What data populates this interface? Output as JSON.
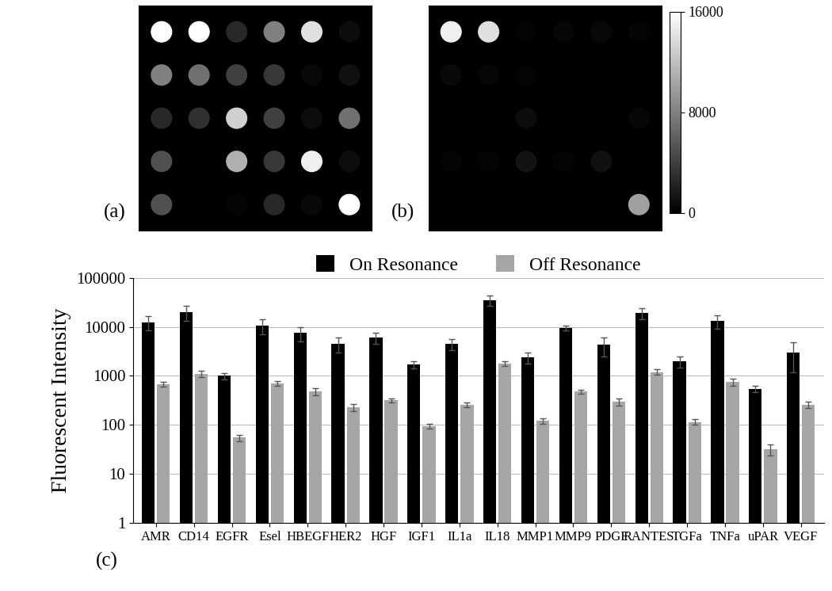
{
  "chart_data": [
    {
      "type": "heatmap",
      "label": "(a)",
      "cells": [
        [
          16000,
          16000,
          2500,
          8000,
          14000,
          800
        ],
        [
          8000,
          7000,
          4000,
          3500,
          500,
          1000
        ],
        [
          2500,
          3000,
          13000,
          4000,
          800,
          7000
        ],
        [
          5000,
          0,
          11000,
          3500,
          15000,
          800
        ],
        [
          5000,
          0,
          300,
          2500,
          500,
          16000
        ]
      ],
      "colorbar_range": [
        0,
        16000
      ]
    },
    {
      "type": "heatmap",
      "label": "(b)",
      "cells": [
        [
          15000,
          14000,
          300,
          400,
          500,
          300
        ],
        [
          600,
          400,
          300,
          0,
          0,
          0
        ],
        [
          0,
          0,
          800,
          0,
          0,
          400
        ],
        [
          300,
          300,
          1200,
          300,
          1000,
          0
        ],
        [
          0,
          0,
          0,
          0,
          0,
          10000
        ]
      ],
      "colorbar_range": [
        0,
        16000
      ],
      "colorbar_ticks": [
        0,
        8000,
        16000
      ]
    },
    {
      "type": "bar",
      "label": "(c)",
      "y_label": "Fluorescent Intensity",
      "categories": [
        "AMR",
        "CD14",
        "EGFR",
        "Esel",
        "HBEGF",
        "HER2",
        "HGF",
        "IGF1",
        "IL1a",
        "IL18",
        "MMP1",
        "MMP9",
        "PDGF",
        "RANTES",
        "TGFa",
        "TNFa",
        "uPAR",
        "VEGF"
      ],
      "series": [
        {
          "name": "On Resonance",
          "color": "#000000",
          "values": [
            12500,
            20000,
            1000,
            10500,
            7500,
            4500,
            6000,
            1700,
            4500,
            35000,
            2400,
            9500,
            4300,
            19000,
            2000,
            13000,
            550,
            3000
          ],
          "errors": [
            4000,
            7000,
            150,
            3500,
            2500,
            1500,
            1500,
            300,
            1200,
            8000,
            600,
            1000,
            1800,
            5000,
            500,
            4000,
            80,
            1800
          ]
        },
        {
          "name": "Off Resonance",
          "color": "#a6a6a6",
          "values": [
            680,
            1100,
            55,
            700,
            480,
            230,
            320,
            95,
            260,
            1800,
            120,
            480,
            300,
            1200,
            115,
            750,
            32,
            260
          ],
          "errors": [
            80,
            150,
            8,
            70,
            80,
            40,
            30,
            12,
            30,
            200,
            15,
            50,
            50,
            150,
            15,
            120,
            8,
            40
          ]
        }
      ],
      "log": "y",
      "ylim": [
        1,
        100000
      ],
      "yticks": [
        1,
        10,
        100,
        1000,
        10000,
        100000
      ],
      "grid": true,
      "legend": "upper center"
    }
  ]
}
